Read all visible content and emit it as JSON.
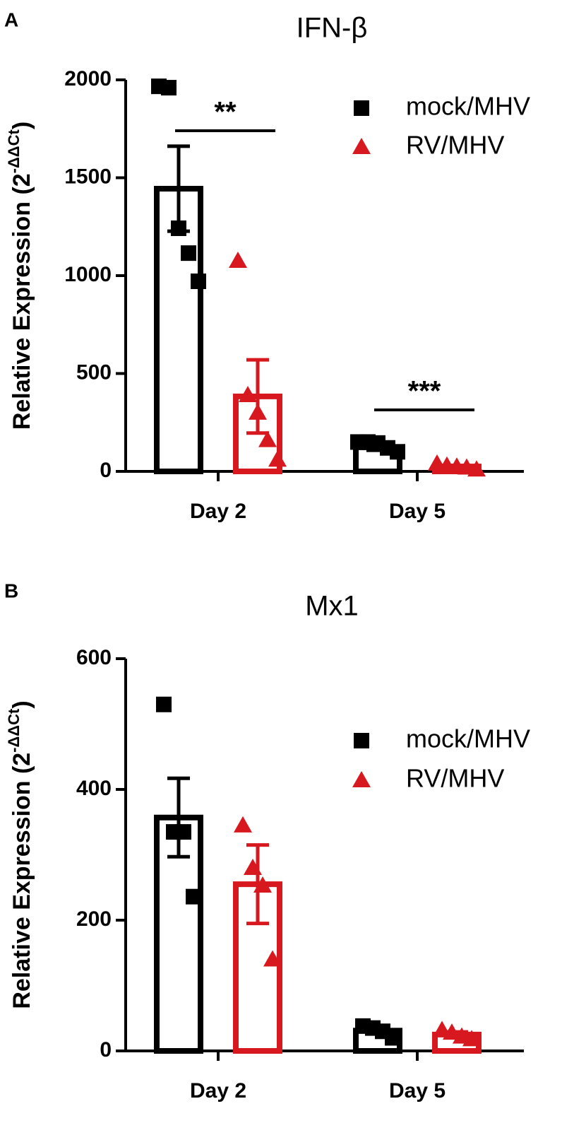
{
  "chart_data": [
    {
      "type": "bar",
      "panel": "A",
      "title": "IFN-β",
      "ylabel": "Relative Expression (2",
      "ylabel_sup": "-ΔΔCt",
      "ylabel_end": ")",
      "categories": [
        "Day 2",
        "Day 5"
      ],
      "series": [
        {
          "name": "mock/MHV",
          "color": "#000000",
          "marker": "square",
          "values": [
            1444,
            123
          ],
          "errors": [
            217,
            15
          ],
          "points": [
            [
              1967,
              1960,
              1242,
              1115,
              971
            ],
            [
              150,
              150,
              145,
              120,
              100
            ]
          ]
        },
        {
          "name": "RV/MHV",
          "color": "#d7191f",
          "marker": "triangle",
          "values": [
            383,
            25
          ],
          "errors": [
            187,
            5
          ],
          "points": [
            [
              1076,
              390,
              300,
              160,
              60
            ],
            [
              40,
              30,
              25,
              20,
              10
            ]
          ]
        }
      ],
      "annotations": [
        "**",
        "***"
      ],
      "ylim": [
        0,
        2000
      ],
      "yticks": [
        0,
        500,
        1000,
        1500,
        2000
      ],
      "legend": "upper right"
    },
    {
      "type": "bar",
      "panel": "B",
      "title": "Mx1",
      "ylabel": "Relative Expression (2",
      "ylabel_sup": "-ΔΔCt",
      "ylabel_end": ")",
      "categories": [
        "Day 2",
        "Day 5"
      ],
      "series": [
        {
          "name": "mock/MHV",
          "color": "#000000",
          "marker": "square",
          "values": [
            357,
            31
          ],
          "errors": [
            60,
            5
          ],
          "points": [
            [
              530,
              335,
              335,
              236
            ],
            [
              38,
              35,
              30,
              20
            ]
          ]
        },
        {
          "name": "RV/MHV",
          "color": "#d7191f",
          "marker": "triangle",
          "values": [
            255,
            25
          ],
          "errors": [
            60,
            4
          ],
          "points": [
            [
              345,
              280,
              253,
              140
            ],
            [
              32,
              28,
              22,
              18
            ]
          ]
        }
      ],
      "ylim": [
        0,
        600
      ],
      "yticks": [
        0,
        200,
        400,
        600
      ],
      "legend": "upper right"
    }
  ]
}
